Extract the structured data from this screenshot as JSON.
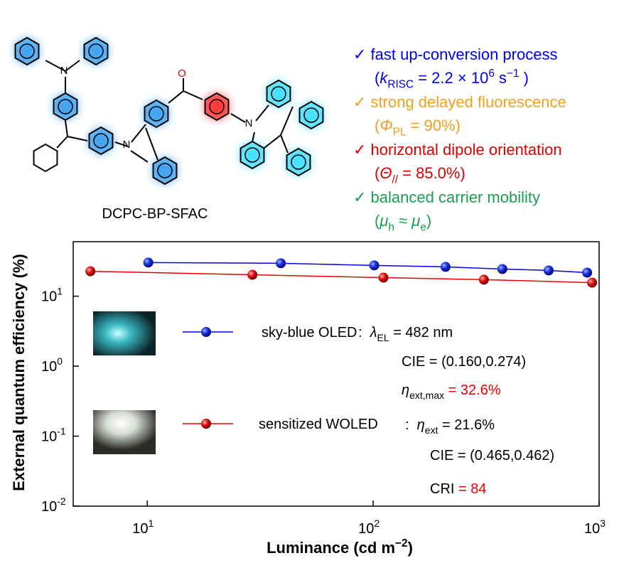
{
  "molecule": {
    "name": "DCPC-BP-SFAC",
    "atoms": [
      "N",
      "N",
      "O",
      "N"
    ]
  },
  "features": [
    {
      "color": "#0000ee",
      "lines": [
        [
          {
            "t": "✓ fast up-conversion process"
          }
        ],
        [
          {
            "t": "("
          },
          {
            "t": "k",
            "italic": true
          },
          {
            "sub": "RISC"
          },
          {
            "t": " = 2.2 × 10"
          },
          {
            "sup": "6"
          },
          {
            "t": " s"
          },
          {
            "sup": "−1"
          },
          {
            "t": " )"
          }
        ]
      ]
    },
    {
      "color": "#f0a020",
      "lines": [
        [
          {
            "t": "✓ strong delayed fluorescence"
          }
        ],
        [
          {
            "t": "("
          },
          {
            "t": "Φ",
            "italic": true
          },
          {
            "sub": "PL"
          },
          {
            "t": " = 90%)"
          }
        ]
      ]
    },
    {
      "color": "#e00000",
      "lines": [
        [
          {
            "t": "✓ horizontal dipole orientation"
          }
        ],
        [
          {
            "t": "("
          },
          {
            "t": "Θ",
            "italic": true
          },
          {
            "sub": "//"
          },
          {
            "t": " = 85.0%)"
          }
        ]
      ]
    },
    {
      "color": "#1aa050",
      "lines": [
        [
          {
            "t": "✓ balanced carrier mobility"
          }
        ],
        [
          {
            "t": "("
          },
          {
            "t": "μ",
            "italic": true
          },
          {
            "sub": "h"
          },
          {
            "t": " ≈ "
          },
          {
            "t": "μ",
            "italic": true
          },
          {
            "sub": "e"
          },
          {
            "t": ")"
          }
        ]
      ]
    }
  ],
  "chart_data": {
    "type": "line",
    "xlabel": [
      {
        "t": "Luminance (cd m"
      },
      {
        "sup": "−2"
      },
      {
        "t": ")"
      }
    ],
    "ylabel": "External quantum efficiency (%)",
    "xscale": "log",
    "yscale": "log",
    "xlim": [
      4.7,
      1000
    ],
    "ylim": [
      0.01,
      60
    ],
    "xticks": [
      {
        "value": 10,
        "label": "10",
        "sup": "1"
      },
      {
        "value": 100,
        "label": "10",
        "sup": "2"
      },
      {
        "value": 1000,
        "label": "10",
        "sup": "3"
      }
    ],
    "yticks": [
      {
        "value": 0.01,
        "label": "10",
        "sup": "-2"
      },
      {
        "value": 0.1,
        "label": "10",
        "sup": "-1"
      },
      {
        "value": 1,
        "label": "10",
        "sup": "0"
      },
      {
        "value": 10,
        "label": "10",
        "sup": "1"
      }
    ],
    "series": [
      {
        "name": "sky-blue OLED",
        "color": "#0000ee",
        "x": [
          10.1,
          39,
          101,
          209,
          373,
          598,
          885
        ],
        "values": [
          30.2,
          29.5,
          27.5,
          26.2,
          24.4,
          23.3,
          21.7
        ]
      },
      {
        "name": "sensitized WOLED",
        "color": "#ee0000",
        "x": [
          5.6,
          29.2,
          111,
          309,
          931
        ],
        "values": [
          22.7,
          20.2,
          18.4,
          17.2,
          15.6
        ]
      }
    ],
    "annotations": [
      [
        {
          "t": ":  "
        },
        {
          "t": "λ",
          "italic": true
        },
        {
          "sub": "EL"
        },
        {
          "t": " = 482 nm"
        }
      ],
      [
        {
          "t": "CIE = (0.160,0.274)"
        }
      ],
      [
        {
          "t": "η",
          "italic": true
        },
        {
          "sub": "ext,max"
        },
        {
          "t": " = 32.6%",
          "color": "#ee0000"
        }
      ],
      [
        {
          "t": ":  "
        },
        {
          "t": "η",
          "italic": true
        },
        {
          "sub": "ext"
        },
        {
          "t": " = 21.6%"
        }
      ],
      [
        {
          "t": "CIE = (0.465,0.462)"
        }
      ],
      [
        {
          "t": "CRI"
        },
        {
          "t": " = 84",
          "color": "#ee0000"
        }
      ]
    ]
  }
}
